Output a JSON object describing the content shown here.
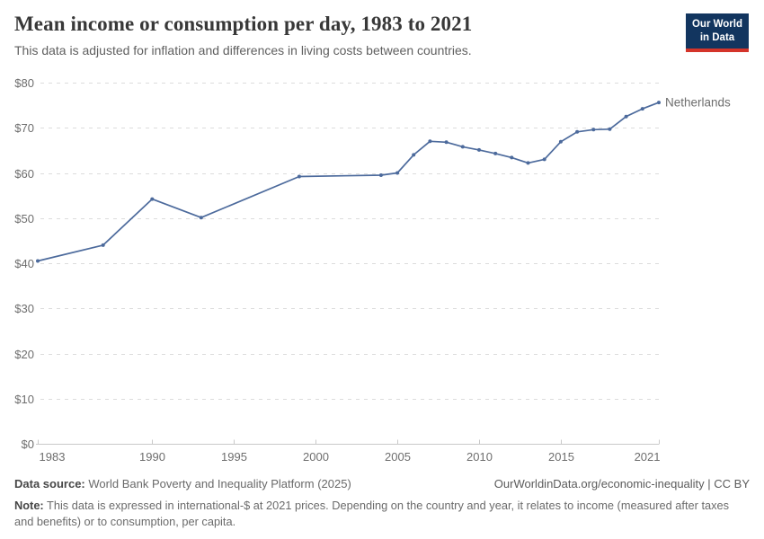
{
  "header": {
    "title": "Mean income or consumption per day, 1983 to 2021",
    "subtitle": "This data is adjusted for inflation and differences in living costs between countries."
  },
  "logo": {
    "line1": "Our World",
    "line2": "in Data",
    "bg_color": "#12355f",
    "bar_color": "#d4342a"
  },
  "chart_data": {
    "type": "line",
    "title": "Mean income or consumption per day, 1983 to 2021",
    "xlabel": "",
    "ylabel": "",
    "x_range": [
      1983,
      2021
    ],
    "y_range": [
      0,
      80
    ],
    "grid": true,
    "legend_position": "end-of-line-label",
    "x_ticks": [
      {
        "v": 1983,
        "label": "1983"
      },
      {
        "v": 1990,
        "label": "1990"
      },
      {
        "v": 1995,
        "label": "1995"
      },
      {
        "v": 2000,
        "label": "2000"
      },
      {
        "v": 2005,
        "label": "2005"
      },
      {
        "v": 2010,
        "label": "2010"
      },
      {
        "v": 2015,
        "label": "2015"
      },
      {
        "v": 2021,
        "label": "2021"
      }
    ],
    "y_ticks": [
      {
        "v": 0,
        "label": "$0"
      },
      {
        "v": 10,
        "label": "$10"
      },
      {
        "v": 20,
        "label": "$20"
      },
      {
        "v": 30,
        "label": "$30"
      },
      {
        "v": 40,
        "label": "$40"
      },
      {
        "v": 50,
        "label": "$50"
      },
      {
        "v": 60,
        "label": "$60"
      },
      {
        "v": 70,
        "label": "$70"
      },
      {
        "v": 80,
        "label": "$80"
      }
    ],
    "series": [
      {
        "name": "Netherlands",
        "color": "#4c6a9c",
        "label_color": "#3d5c8f",
        "points": [
          [
            1983,
            40.5
          ],
          [
            1987,
            44.0
          ],
          [
            1990,
            54.2
          ],
          [
            1993,
            50.1
          ],
          [
            1999,
            59.2
          ],
          [
            2004,
            59.5
          ],
          [
            2005,
            60.0
          ],
          [
            2006,
            64.0
          ],
          [
            2007,
            67.0
          ],
          [
            2008,
            66.8
          ],
          [
            2009,
            65.8
          ],
          [
            2010,
            65.1
          ],
          [
            2011,
            64.3
          ],
          [
            2012,
            63.4
          ],
          [
            2013,
            62.2
          ],
          [
            2014,
            63.0
          ],
          [
            2015,
            66.9
          ],
          [
            2016,
            69.1
          ],
          [
            2017,
            69.6
          ],
          [
            2018,
            69.7
          ],
          [
            2019,
            72.5
          ],
          [
            2020,
            74.2
          ],
          [
            2021,
            75.6
          ]
        ]
      }
    ]
  },
  "footer": {
    "data_source_label": "Data source:",
    "data_source_value": "World Bank Poverty and Inequality Platform (2025)",
    "link": "OurWorldinData.org/economic-inequality | CC BY",
    "note_label": "Note:",
    "note_text": "This data is expressed in international-$ at 2021 prices. Depending on the country and year, it relates to income (measured after taxes and benefits) or to consumption, per capita."
  }
}
